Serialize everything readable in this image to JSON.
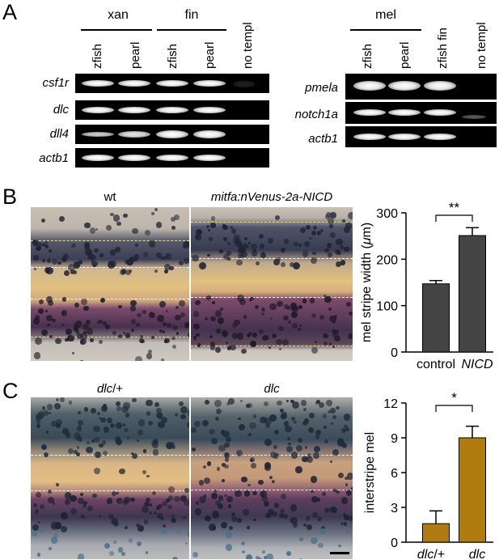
{
  "panelA": {
    "label": "A",
    "left_gel": {
      "groups": [
        {
          "name": "xan"
        },
        {
          "name": "fin"
        }
      ],
      "columns": [
        "zfish",
        "pearl",
        "zfish",
        "pearl",
        "no templ"
      ],
      "rows": [
        "csf1r",
        "dlc",
        "dll4",
        "actb1"
      ]
    },
    "right_gel": {
      "groups": [
        {
          "name": "mel"
        }
      ],
      "columns": [
        "zfish",
        "pearl",
        "zfish fin",
        "no templ"
      ],
      "rows": [
        "pmela",
        "notch1a",
        "actb1"
      ]
    }
  },
  "panelB": {
    "label": "B",
    "photo_titles": [
      "wt",
      "mitfa:nVenus-2a-NICD"
    ],
    "significance": "**",
    "ylabel_pre": "mel stripe width (",
    "ylabel_mu": "μ",
    "ylabel_post": "m)",
    "colors": {
      "bar": "#444444"
    }
  },
  "panelC": {
    "label": "C",
    "photo_titles": [
      [
        "dlc",
        "/+"
      ],
      [
        "dlc",
        ""
      ]
    ],
    "significance": "*",
    "ylabel": "interstripe mel",
    "colors": {
      "bar": "#b07c10"
    }
  },
  "chart_data": [
    {
      "type": "bar",
      "categories": [
        "control",
        "NICD"
      ],
      "values": [
        147,
        251
      ],
      "errors": [
        7,
        17
      ],
      "ylabel": "mel stripe width (μm)",
      "ylim": [
        0,
        300
      ],
      "yticks": [
        0,
        100,
        200,
        300
      ],
      "significance": "**"
    },
    {
      "type": "bar",
      "categories": [
        "dlc/+",
        "dlc"
      ],
      "values": [
        1.6,
        9.0
      ],
      "errors": [
        1.1,
        1.0
      ],
      "ylabel": "interstripe mel",
      "ylim": [
        0,
        12
      ],
      "yticks": [
        0,
        3,
        6,
        9,
        12
      ],
      "significance": "*"
    }
  ]
}
